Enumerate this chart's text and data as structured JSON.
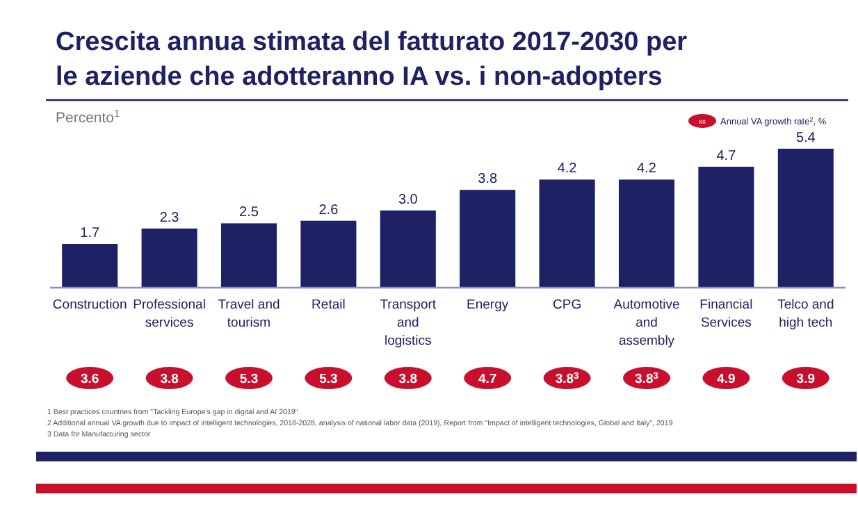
{
  "chart_data": {
    "type": "bar",
    "title": "Crescita annua stimata del fatturato 2017-2030 per le aziende che adotteranno IA vs. i non-adopters",
    "ylabel": "Percento$^{1}$",
    "categories": [
      "Construction",
      "Professional services",
      "Travel and tourism",
      "Retail",
      "Transport and logistics",
      "Energy",
      "CPG",
      "Automotive and assembly",
      "Financial Services",
      "Telco and high tech"
    ],
    "values": [
      1.7,
      2.3,
      2.5,
      2.6,
      3.0,
      3.8,
      4.2,
      4.2,
      4.7,
      5.4
    ],
    "color": "#1e2163",
    "value_labels": [
      "1.7",
      "2.3",
      "2.5",
      "2.6",
      "3.0",
      "3.8",
      "4.2",
      "4.2",
      "4.7",
      "5.4"
    ],
    "annotations": [
      "Annual VA growth rate$^{2}$, %",
      "xx",
      "1 Best practices countries from \"Tackling Europe's gap in digital and AI 2019\"",
      "2 Additional annual VA growth due to impact of intelligent technologies, 2018-2028, analysis of national labor data (2019), Report from \"Impact of intelligent technologies, Global and Italy\", 2019",
      "3 Data for Manufacturing sector",
      "3.6",
      "3.8",
      "5.3",
      "5.3",
      "3.8",
      "4.7",
      "3.8$^{3}$",
      "3.8$^{3}$",
      "4.9",
      "3.9"
    ]
  }
}
